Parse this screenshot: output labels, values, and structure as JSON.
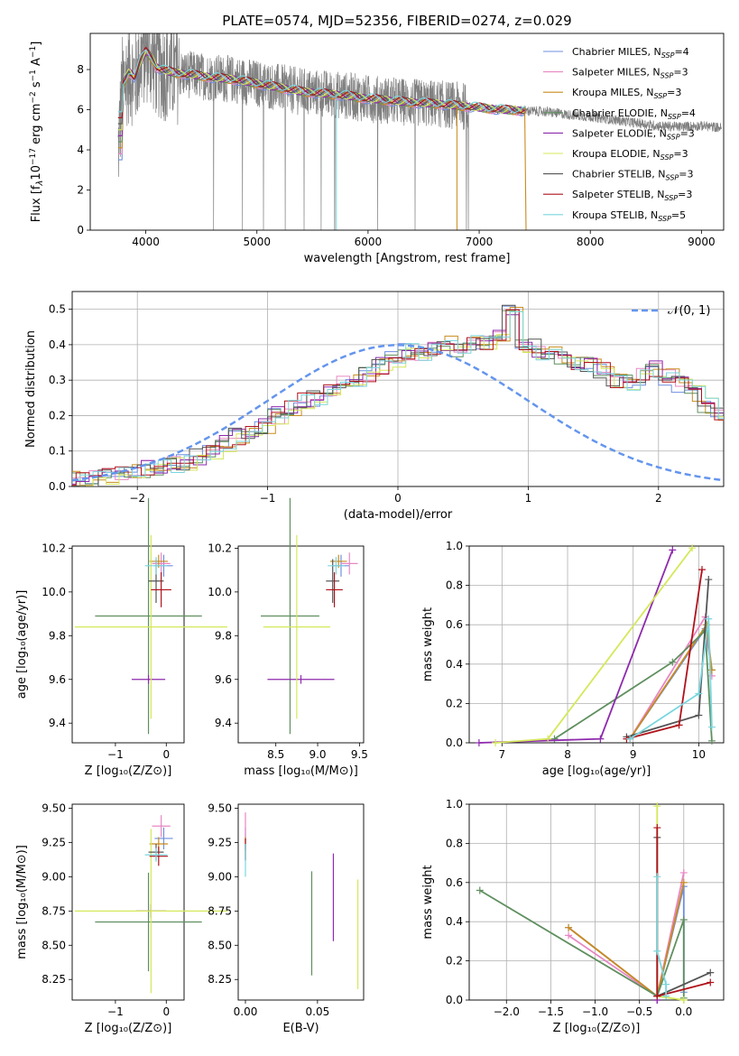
{
  "title": "PLATE=0574, MJD=52356, FIBERID=0274, z=0.029",
  "colors": {
    "chabrier_miles": "#6e8fe0",
    "salpeter_miles": "#e887c3",
    "kroupa_miles": "#c98b1e",
    "chabrier_elodie": "#5f8f5f",
    "salpeter_elodie": "#8e2aad",
    "kroupa_elodie": "#d5e85a",
    "chabrier_stelib": "#555555",
    "salpeter_stelib": "#b0121b",
    "kroupa_stelib": "#7ad6de",
    "data": "#808080",
    "gauss": "#6495ed",
    "grid": "#b0b0b0"
  },
  "chart_data": [
    {
      "id": "spectrum",
      "type": "line",
      "title": "PLATE=0574, MJD=52356, FIBERID=0274, z=0.029",
      "xlabel": "wavelength [Angstrom, rest frame]",
      "ylabel": "Flux [fλ10⁻¹⁷ erg cm⁻² s⁻¹ A⁻¹]",
      "ylabel_parts": [
        "Flux [f",
        "λ",
        "10",
        "−17",
        " erg cm",
        "−2",
        " s",
        "−1",
        " A",
        "−1",
        "]"
      ],
      "xlim": [
        3500,
        9200
      ],
      "ylim": [
        0,
        9.8
      ],
      "xticks": [
        "4000",
        "5000",
        "6000",
        "7000",
        "8000",
        "9000"
      ],
      "yticks": [
        "0",
        "2",
        "4",
        "6",
        "8"
      ],
      "grid": false,
      "legend_position": "top-right",
      "legend": [
        {
          "key": "chabrier_miles",
          "label": "Chabrier MILES, N",
          "sub": "SSP",
          "suffix": "=4"
        },
        {
          "key": "salpeter_miles",
          "label": "Salpeter MILES, N",
          "sub": "SSP",
          "suffix": "=3"
        },
        {
          "key": "kroupa_miles",
          "label": "Kroupa MILES, N",
          "sub": "SSP",
          "suffix": "=3"
        },
        {
          "key": "chabrier_elodie",
          "label": "Chabrier ELODIE, N",
          "sub": "SSP",
          "suffix": "=4"
        },
        {
          "key": "salpeter_elodie",
          "label": "Salpeter ELODIE, N",
          "sub": "SSP",
          "suffix": "=3"
        },
        {
          "key": "kroupa_elodie",
          "label": "Kroupa ELODIE, N",
          "sub": "SSP",
          "suffix": "=3"
        },
        {
          "key": "chabrier_stelib",
          "label": "Chabrier STELIB, N",
          "sub": "SSP",
          "suffix": "=3"
        },
        {
          "key": "salpeter_stelib",
          "label": "Salpeter STELIB, N",
          "sub": "SSP",
          "suffix": "=3"
        },
        {
          "key": "kroupa_stelib",
          "label": "Kroupa STELIB, N",
          "sub": "SSP",
          "suffix": "=5"
        }
      ],
      "data_range": [
        3750,
        9180
      ],
      "model_range": [
        3750,
        7420
      ],
      "continuum": [
        [
          3750,
          3.8
        ],
        [
          3790,
          7.2
        ],
        [
          3850,
          7.9
        ],
        [
          3900,
          7.6
        ],
        [
          3950,
          8.4
        ],
        [
          4000,
          8.9
        ],
        [
          4050,
          8.6
        ],
        [
          4100,
          8.1
        ],
        [
          4200,
          7.9
        ],
        [
          4300,
          7.8
        ],
        [
          4400,
          7.75
        ],
        [
          4600,
          7.6
        ],
        [
          4800,
          7.5
        ],
        [
          5000,
          7.3
        ],
        [
          5200,
          7.1
        ],
        [
          5400,
          6.9
        ],
        [
          5600,
          6.8
        ],
        [
          5800,
          6.7
        ],
        [
          6000,
          6.55
        ],
        [
          6200,
          6.45
        ],
        [
          6400,
          6.35
        ],
        [
          6600,
          6.3
        ],
        [
          6800,
          6.2
        ],
        [
          7000,
          6.1
        ],
        [
          7200,
          6.0
        ],
        [
          7400,
          5.95
        ],
        [
          7600,
          5.9
        ],
        [
          7800,
          5.75
        ],
        [
          8000,
          5.65
        ],
        [
          8200,
          5.5
        ],
        [
          8400,
          5.35
        ],
        [
          8600,
          5.2
        ],
        [
          8800,
          5.15
        ],
        [
          9000,
          5.2
        ],
        [
          9180,
          5.1
        ]
      ]
    },
    {
      "id": "residuals",
      "type": "histogram",
      "xlabel": "(data-model)/error",
      "ylabel": "Normed distribution",
      "xlim": [
        -2.5,
        2.5
      ],
      "ylim": [
        0,
        0.55
      ],
      "xticks": [
        "−2",
        "−1",
        "0",
        "1",
        "2"
      ],
      "yticks": [
        "0.0",
        "0.1",
        "0.2",
        "0.3",
        "0.4",
        "0.5"
      ],
      "grid": true,
      "legend_position": "top-right",
      "legend": [
        {
          "key": "gauss",
          "label": "𝒩(0, 1)"
        }
      ],
      "bin_edges_step": 0.1,
      "series_shape": [
        0.018,
        0.02,
        0.025,
        0.03,
        0.035,
        0.04,
        0.05,
        0.055,
        0.06,
        0.07,
        0.085,
        0.1,
        0.12,
        0.14,
        0.155,
        0.17,
        0.2,
        0.22,
        0.24,
        0.25,
        0.27,
        0.29,
        0.3,
        0.32,
        0.34,
        0.36,
        0.38,
        0.38,
        0.39,
        0.4,
        0.38,
        0.41,
        0.4,
        0.42,
        0.5,
        0.4,
        0.38,
        0.37,
        0.36,
        0.35,
        0.34,
        0.33,
        0.3,
        0.29,
        0.31,
        0.33,
        0.31,
        0.29,
        0.26,
        0.23,
        0.21,
        0.2,
        0.18,
        0.17,
        0.15,
        0.14,
        0.12,
        0.11,
        0.09,
        0.08,
        0.07,
        0.06,
        0.055,
        0.05,
        0.04,
        0.035,
        0.03
      ]
    },
    {
      "id": "age_vs_Z",
      "type": "errorbar",
      "xlabel": "Z [log₁₀(Z/Z⊙)]",
      "ylabel": "age  [log₁₀(age/yr)]",
      "xlim": [
        -1.85,
        0.35
      ],
      "ylim": [
        9.31,
        10.21
      ],
      "xticks": [
        "−1",
        "0"
      ],
      "xtick_values": [
        -1,
        0
      ],
      "yticks": [
        "9.4",
        "9.6",
        "9.8",
        "10.0",
        "10.2"
      ],
      "ytick_values": [
        9.4,
        9.6,
        9.8,
        10.0,
        10.2
      ],
      "points": [
        {
          "key": "chabrier_miles",
          "x": -0.05,
          "xerr": 0.18,
          "y": 10.12,
          "yerr": 0.05
        },
        {
          "key": "salpeter_miles",
          "x": -0.1,
          "xerr": 0.18,
          "y": 10.13,
          "yerr": 0.05
        },
        {
          "key": "kroupa_miles",
          "x": -0.15,
          "xerr": 0.18,
          "y": 10.14,
          "yerr": 0.03
        },
        {
          "key": "chabrier_elodie",
          "x": -0.35,
          "xerr": 1.05,
          "y": 9.89,
          "yerr": 0.54
        },
        {
          "key": "salpeter_elodie",
          "x": -0.35,
          "xerr": 0.33,
          "y": 9.6,
          "yerr": 0.02
        },
        {
          "key": "kroupa_elodie",
          "x": -0.3,
          "xerr": 1.5,
          "y": 9.84,
          "yerr": 0.42
        },
        {
          "key": "chabrier_stelib",
          "x": -0.2,
          "xerr": 0.15,
          "y": 10.05,
          "yerr": 0.1
        },
        {
          "key": "salpeter_stelib",
          "x": -0.1,
          "xerr": 0.2,
          "y": 10.01,
          "yerr": 0.08
        },
        {
          "key": "kroupa_stelib",
          "x": -0.2,
          "xerr": 0.22,
          "y": 10.12,
          "yerr": 0.04
        }
      ]
    },
    {
      "id": "age_vs_mass",
      "type": "errorbar",
      "xlabel": "mass [log₁₀(M/M⊙)]",
      "ylabel": "",
      "xlim": [
        8.05,
        9.55
      ],
      "ylim": [
        9.31,
        10.21
      ],
      "xticks": [
        "8.5",
        "9.0",
        "9.5"
      ],
      "xtick_values": [
        8.5,
        9.0,
        9.5
      ],
      "yticks": [
        "9.4",
        "9.6",
        "9.8",
        "10.0",
        "10.2"
      ],
      "ytick_values": [
        9.4,
        9.6,
        9.8,
        10.0,
        10.2
      ],
      "points": [
        {
          "key": "chabrier_miles",
          "x": 9.28,
          "xerr": 0.1,
          "y": 10.12,
          "yerr": 0.05
        },
        {
          "key": "salpeter_miles",
          "x": 9.38,
          "xerr": 0.1,
          "y": 10.13,
          "yerr": 0.05
        },
        {
          "key": "kroupa_miles",
          "x": 9.25,
          "xerr": 0.1,
          "y": 10.14,
          "yerr": 0.03
        },
        {
          "key": "chabrier_elodie",
          "x": 8.67,
          "xerr": 0.35,
          "y": 9.89,
          "yerr": 0.54
        },
        {
          "key": "salpeter_elodie",
          "x": 8.8,
          "xerr": 0.4,
          "y": 9.6,
          "yerr": 0.02
        },
        {
          "key": "kroupa_elodie",
          "x": 8.75,
          "xerr": 0.4,
          "y": 9.84,
          "yerr": 0.42
        },
        {
          "key": "chabrier_stelib",
          "x": 9.18,
          "xerr": 0.08,
          "y": 10.05,
          "yerr": 0.1
        },
        {
          "key": "salpeter_stelib",
          "x": 9.2,
          "xerr": 0.1,
          "y": 10.01,
          "yerr": 0.08
        },
        {
          "key": "kroupa_stelib",
          "x": 9.22,
          "xerr": 0.1,
          "y": 10.12,
          "yerr": 0.04
        }
      ]
    },
    {
      "id": "weight_vs_age",
      "type": "line",
      "xlabel": "age  [log₁₀(age/yr)]",
      "ylabel": "mass weight",
      "xlim": [
        6.5,
        10.38
      ],
      "ylim": [
        0,
        1.0
      ],
      "xticks": [
        "7",
        "8",
        "9",
        "10"
      ],
      "xtick_values": [
        7,
        8,
        9,
        10
      ],
      "yticks": [
        "0.0",
        "0.2",
        "0.4",
        "0.6",
        "0.8",
        "1.0"
      ],
      "ytick_values": [
        0,
        0.2,
        0.4,
        0.6,
        0.8,
        1.0
      ],
      "grid": true,
      "series": [
        {
          "key": "chabrier_miles",
          "x": [
            8.95,
            10.1,
            10.2
          ],
          "y": [
            0.02,
            0.58,
            0.37
          ]
        },
        {
          "key": "salpeter_miles",
          "x": [
            8.95,
            10.1,
            10.2
          ],
          "y": [
            0.02,
            0.64,
            0.34
          ]
        },
        {
          "key": "kroupa_miles",
          "x": [
            8.95,
            10.12,
            10.2
          ],
          "y": [
            0.02,
            0.6,
            0.37
          ]
        },
        {
          "key": "chabrier_elodie",
          "x": [
            7.8,
            9.6,
            10.1,
            10.2
          ],
          "y": [
            0.02,
            0.41,
            0.57,
            0.01
          ]
        },
        {
          "key": "salpeter_elodie",
          "x": [
            6.65,
            8.5,
            9.6
          ],
          "y": [
            0.0,
            0.02,
            0.98
          ]
        },
        {
          "key": "kroupa_elodie",
          "x": [
            6.9,
            7.7,
            9.9
          ],
          "y": [
            0.0,
            0.02,
            0.99
          ]
        },
        {
          "key": "chabrier_stelib",
          "x": [
            8.9,
            10.0,
            10.15
          ],
          "y": [
            0.03,
            0.14,
            0.83
          ]
        },
        {
          "key": "salpeter_stelib",
          "x": [
            8.9,
            9.7,
            10.05
          ],
          "y": [
            0.02,
            0.09,
            0.88
          ]
        },
        {
          "key": "kroupa_stelib",
          "x": [
            8.95,
            10.0,
            10.15,
            10.2
          ],
          "y": [
            0.02,
            0.25,
            0.63,
            0.08
          ]
        }
      ]
    },
    {
      "id": "mass_vs_Z",
      "type": "errorbar",
      "xlabel": "Z [log₁₀(Z/Z⊙)]",
      "ylabel": "mass [log₁₀(M/M⊙)]",
      "xlim": [
        -1.85,
        0.35
      ],
      "ylim": [
        8.1,
        9.53
      ],
      "xticks": [
        "−1",
        "0"
      ],
      "xtick_values": [
        -1,
        0
      ],
      "yticks": [
        "8.25",
        "8.50",
        "8.75",
        "9.00",
        "9.25",
        "9.50"
      ],
      "ytick_values": [
        8.25,
        8.5,
        8.75,
        9.0,
        9.25,
        9.5
      ],
      "points": [
        {
          "key": "chabrier_miles",
          "x": -0.05,
          "xerr": 0.18,
          "y": 9.28,
          "yerr": 0.08
        },
        {
          "key": "salpeter_miles",
          "x": -0.1,
          "xerr": 0.18,
          "y": 9.37,
          "yerr": 0.08
        },
        {
          "key": "kroupa_miles",
          "x": -0.15,
          "xerr": 0.18,
          "y": 9.24,
          "yerr": 0.05
        },
        {
          "key": "chabrier_elodie",
          "x": -0.35,
          "xerr": 1.05,
          "y": 8.67,
          "yerr": 0.36
        },
        {
          "key": "salpeter_elodie",
          "x": -0.3,
          "xerr": 0.3,
          "y": 8.75,
          "yerr": 0.05
        },
        {
          "key": "kroupa_elodie",
          "x": -0.3,
          "xerr": 1.5,
          "y": 8.75,
          "yerr": 0.6
        },
        {
          "key": "chabrier_stelib",
          "x": -0.2,
          "xerr": 0.15,
          "y": 9.18,
          "yerr": 0.06
        },
        {
          "key": "salpeter_stelib",
          "x": -0.15,
          "xerr": 0.18,
          "y": 9.15,
          "yerr": 0.07
        },
        {
          "key": "kroupa_stelib",
          "x": -0.2,
          "xerr": 0.22,
          "y": 9.16,
          "yerr": 0.05
        }
      ]
    },
    {
      "id": "mass_vs_ebv",
      "type": "errorbar",
      "xlabel": "E(B-V)",
      "ylabel": "",
      "xlim": [
        -0.005,
        0.082
      ],
      "ylim": [
        8.1,
        9.53
      ],
      "xticks": [
        "0.00",
        "0.05"
      ],
      "xtick_values": [
        0.0,
        0.05
      ],
      "yticks": [
        "8.25",
        "8.50",
        "8.75",
        "9.00",
        "9.25",
        "9.50"
      ],
      "ytick_values": [
        8.25,
        8.5,
        8.75,
        9.0,
        9.25,
        9.5
      ],
      "points": [
        {
          "key": "chabrier_miles",
          "x": 0.0,
          "xerr": 0,
          "y": 9.28,
          "yerr": 0.08
        },
        {
          "key": "salpeter_miles",
          "x": 0.0,
          "xerr": 0,
          "y": 9.37,
          "yerr": 0.1
        },
        {
          "key": "kroupa_miles",
          "x": 0.0,
          "xerr": 0,
          "y": 9.24,
          "yerr": 0.05
        },
        {
          "key": "chabrier_elodie",
          "x": 0.046,
          "xerr": 0,
          "y": 8.66,
          "yerr": 0.38
        },
        {
          "key": "salpeter_elodie",
          "x": 0.061,
          "xerr": 0,
          "y": 8.85,
          "yerr": 0.32
        },
        {
          "key": "kroupa_elodie",
          "x": 0.078,
          "xerr": 0,
          "y": 8.58,
          "yerr": 0.4
        },
        {
          "key": "chabrier_stelib",
          "x": 0.0,
          "xerr": 0,
          "y": 9.18,
          "yerr": 0.06
        },
        {
          "key": "salpeter_stelib",
          "x": 0.0,
          "xerr": 0,
          "y": 9.2,
          "yerr": 0.08
        },
        {
          "key": "kroupa_stelib",
          "x": 0.0,
          "xerr": 0,
          "y": 9.12,
          "yerr": 0.12
        }
      ]
    },
    {
      "id": "weight_vs_Z",
      "type": "line",
      "xlabel": "Z [log₁₀(Z/Z⊙)]",
      "ylabel": "mass weight",
      "xlim": [
        -2.42,
        0.45
      ],
      "ylim": [
        0,
        1.0
      ],
      "xticks": [
        "−2.0",
        "−1.5",
        "−1.0",
        "−0.5",
        "0.0"
      ],
      "xtick_values": [
        -2.0,
        -1.5,
        -1.0,
        -0.5,
        0.0
      ],
      "yticks": [
        "0.0",
        "0.2",
        "0.4",
        "0.6",
        "0.8",
        "1.0"
      ],
      "ytick_values": [
        0,
        0.2,
        0.4,
        0.6,
        0.8,
        1.0
      ],
      "grid": true,
      "series": [
        {
          "key": "chabrier_miles",
          "x": [
            -1.3,
            -0.3,
            0.0,
            0.0
          ],
          "y": [
            0.37,
            0.02,
            0.58,
            0.04
          ]
        },
        {
          "key": "salpeter_miles",
          "x": [
            -1.3,
            -0.3,
            0.0
          ],
          "y": [
            0.33,
            0.02,
            0.65
          ]
        },
        {
          "key": "kroupa_miles",
          "x": [
            -1.3,
            -0.3,
            0.0
          ],
          "y": [
            0.37,
            0.02,
            0.6
          ]
        },
        {
          "key": "chabrier_elodie",
          "x": [
            -2.3,
            -0.3,
            0.0,
            0.0
          ],
          "y": [
            0.56,
            0.02,
            0.41,
            0.01
          ]
        },
        {
          "key": "salpeter_elodie",
          "x": [
            -0.3,
            -0.3
          ],
          "y": [
            0.0,
            0.0
          ]
        },
        {
          "key": "kroupa_elodie",
          "x": [
            -0.3,
            -0.3,
            0.0
          ],
          "y": [
            0.99,
            0.02,
            0.0
          ]
        },
        {
          "key": "chabrier_stelib",
          "x": [
            -0.3,
            -0.3,
            0.3
          ],
          "y": [
            0.83,
            0.02,
            0.14
          ]
        },
        {
          "key": "salpeter_stelib",
          "x": [
            -0.3,
            -0.3,
            0.3
          ],
          "y": [
            0.88,
            0.02,
            0.09
          ]
        },
        {
          "key": "kroupa_stelib",
          "x": [
            -0.3,
            -0.3,
            -0.2,
            -0.2
          ],
          "y": [
            0.63,
            0.25,
            0.08,
            0.02
          ]
        }
      ]
    }
  ]
}
